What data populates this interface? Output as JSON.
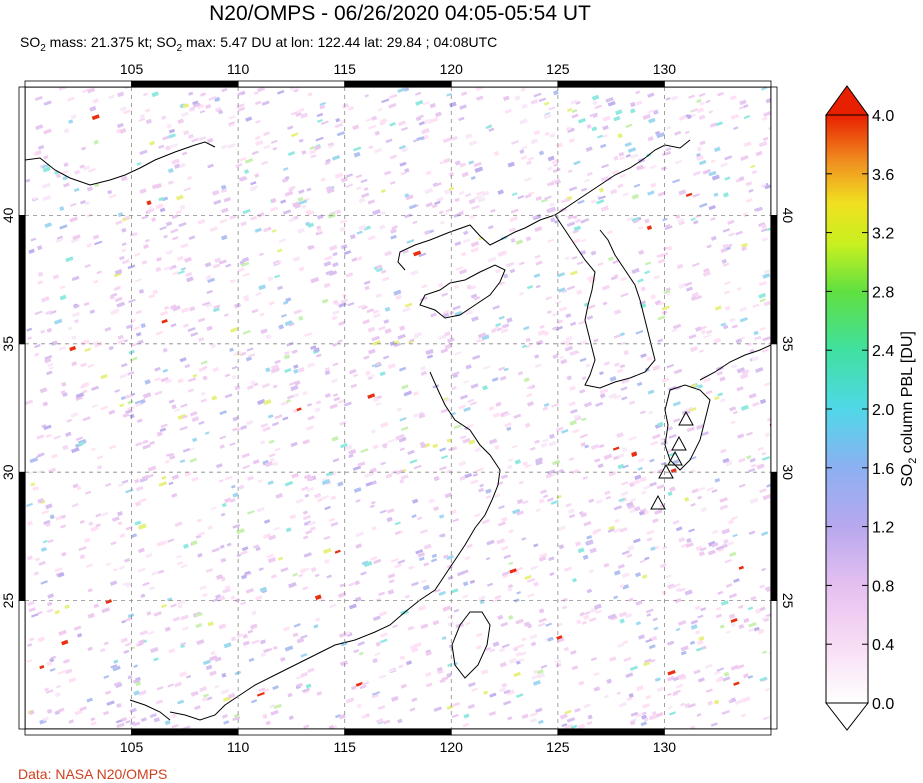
{
  "title": "N20/OMPS - 06/26/2020 04:05-05:54 UT",
  "subtitle": {
    "p1": "SO",
    "sub1": "2",
    "p2": " mass: 21.375 kt; SO",
    "sub2": "2",
    "p3": " max: 5.47 DU at lon: 122.44 lat: 29.84 ; 04:08UTC"
  },
  "credit": "Data: NASA N20/OMPS",
  "map": {
    "lon_range": [
      100,
      135
    ],
    "lat_range": [
      20,
      45
    ],
    "lon_ticks": [
      "105",
      "110",
      "115",
      "120",
      "125",
      "130"
    ],
    "lat_ticks": [
      "40",
      "35",
      "30",
      "25"
    ],
    "grid": "dashed",
    "volcano_marker": "triangle-icon"
  },
  "colorbar": {
    "label_prefix": "SO",
    "label_sub": "2",
    "label_suffix": " column PBL [DU]",
    "ticks": [
      "4.0",
      "3.6",
      "3.2",
      "2.8",
      "2.4",
      "2.0",
      "1.6",
      "1.2",
      "0.8",
      "0.4",
      "0.0"
    ],
    "range": [
      0,
      4.0
    ],
    "colors": [
      "#ffffff",
      "#f6d8f4",
      "#d8b8ee",
      "#a0a8f0",
      "#70d8f0",
      "#40e0a0",
      "#60e040",
      "#d0f020",
      "#f0e020",
      "#f0a020",
      "#f05010",
      "#e02000"
    ]
  }
}
